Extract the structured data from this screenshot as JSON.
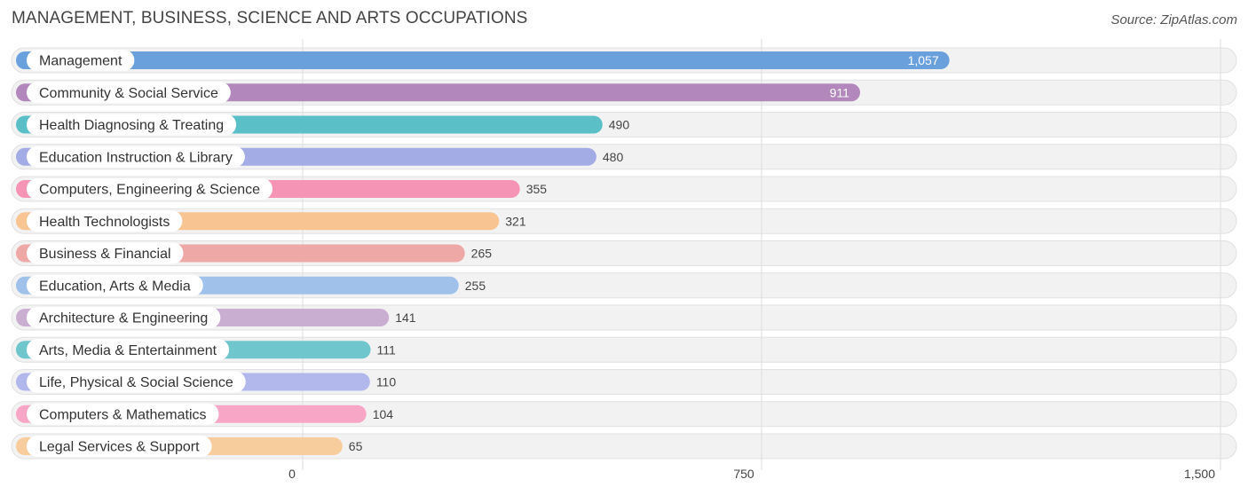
{
  "header": {
    "title": "MANAGEMENT, BUSINESS, SCIENCE AND ARTS OCCUPATIONS",
    "source": "Source: ZipAtlas.com"
  },
  "chart_data": {
    "type": "bar",
    "orientation": "horizontal",
    "title": "MANAGEMENT, BUSINESS, SCIENCE AND ARTS OCCUPATIONS",
    "xlabel": "",
    "ylabel": "",
    "xlim": [
      0,
      1500
    ],
    "x_ticks": [
      0,
      750,
      1500
    ],
    "x_tick_labels": [
      "0",
      "750",
      "1,500"
    ],
    "grid": true,
    "categories": [
      "Management",
      "Community & Social Service",
      "Health Diagnosing & Treating",
      "Education Instruction & Library",
      "Computers, Engineering & Science",
      "Health Technologists",
      "Business & Financial",
      "Education, Arts & Media",
      "Architecture & Engineering",
      "Arts, Media & Entertainment",
      "Life, Physical & Social Science",
      "Computers & Mathematics",
      "Legal Services & Support"
    ],
    "values": [
      1057,
      911,
      490,
      480,
      355,
      321,
      265,
      255,
      141,
      111,
      110,
      104,
      65
    ],
    "value_labels": [
      "1,057",
      "911",
      "490",
      "480",
      "355",
      "321",
      "265",
      "255",
      "141",
      "111",
      "110",
      "104",
      "65"
    ],
    "colors": [
      "#6aa1dc",
      "#b287bb",
      "#5bbfc8",
      "#a4ace6",
      "#f594b4",
      "#f8c492",
      "#eea9a6",
      "#9fc1ea",
      "#c9aed1",
      "#6fc6cd",
      "#b2b8ec",
      "#f7a6c5",
      "#f8cd9e"
    ]
  }
}
